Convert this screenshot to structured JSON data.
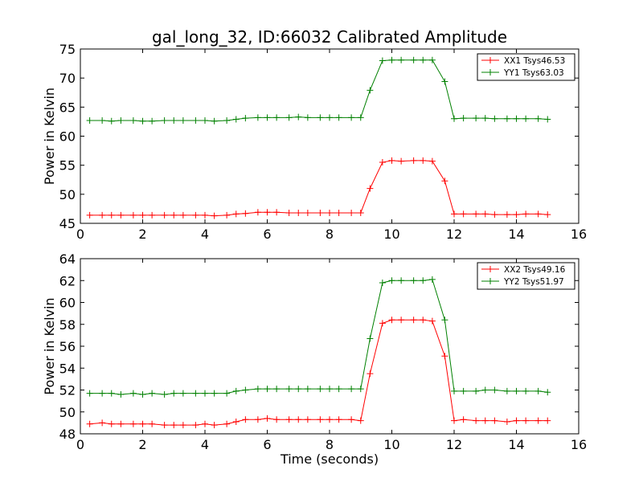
{
  "chart_data": [
    {
      "type": "line",
      "title": "gal_long_32, ID:66032 Calibrated Amplitude",
      "xlabel": "",
      "ylabel": "Power in Kelvin",
      "xlim": [
        0,
        16
      ],
      "ylim": [
        45,
        75
      ],
      "xticks": [
        "0",
        "2",
        "4",
        "6",
        "8",
        "10",
        "12",
        "14",
        "16"
      ],
      "yticks": [
        "45",
        "50",
        "55",
        "60",
        "65",
        "70",
        "75"
      ],
      "legend_position": "top-right",
      "x": [
        0.3,
        0.7,
        1.0,
        1.3,
        1.7,
        2.0,
        2.3,
        2.7,
        3.0,
        3.3,
        3.7,
        4.0,
        4.3,
        4.7,
        5.0,
        5.3,
        5.7,
        6.0,
        6.3,
        6.7,
        7.0,
        7.3,
        7.7,
        8.0,
        8.3,
        8.7,
        9.0,
        9.3,
        9.7,
        10.0,
        10.3,
        10.7,
        11.0,
        11.3,
        11.7,
        12.0,
        12.3,
        12.7,
        13.0,
        13.3,
        13.7,
        14.0,
        14.3,
        14.7,
        15.0
      ],
      "series": [
        {
          "name": "XX1 Tsys46.53",
          "color": "#ff0000",
          "values": [
            46.4,
            46.4,
            46.4,
            46.4,
            46.4,
            46.4,
            46.4,
            46.4,
            46.4,
            46.4,
            46.4,
            46.4,
            46.3,
            46.4,
            46.6,
            46.7,
            46.9,
            46.9,
            46.9,
            46.8,
            46.8,
            46.8,
            46.8,
            46.8,
            46.8,
            46.8,
            46.8,
            51.0,
            55.5,
            55.8,
            55.7,
            55.8,
            55.8,
            55.7,
            52.3,
            46.6,
            46.6,
            46.6,
            46.6,
            46.5,
            46.5,
            46.5,
            46.6,
            46.6,
            46.5
          ]
        },
        {
          "name": "YY1 Tsys63.03",
          "color": "#008000",
          "values": [
            62.7,
            62.7,
            62.6,
            62.7,
            62.7,
            62.6,
            62.6,
            62.7,
            62.7,
            62.7,
            62.7,
            62.7,
            62.6,
            62.7,
            62.9,
            63.1,
            63.2,
            63.2,
            63.2,
            63.2,
            63.3,
            63.2,
            63.2,
            63.2,
            63.2,
            63.2,
            63.2,
            67.9,
            73.0,
            73.1,
            73.1,
            73.1,
            73.1,
            73.1,
            69.4,
            63.0,
            63.1,
            63.1,
            63.1,
            63.0,
            63.0,
            63.0,
            63.0,
            63.0,
            62.9
          ]
        }
      ]
    },
    {
      "type": "line",
      "title": "",
      "xlabel": "Time (seconds)",
      "ylabel": "Power in Kelvin",
      "xlim": [
        0,
        16
      ],
      "ylim": [
        48,
        64
      ],
      "xticks": [
        "0",
        "2",
        "4",
        "6",
        "8",
        "10",
        "12",
        "14",
        "16"
      ],
      "yticks": [
        "48",
        "50",
        "52",
        "54",
        "56",
        "58",
        "60",
        "62",
        "64"
      ],
      "legend_position": "top-right",
      "x": [
        0.3,
        0.7,
        1.0,
        1.3,
        1.7,
        2.0,
        2.3,
        2.7,
        3.0,
        3.3,
        3.7,
        4.0,
        4.3,
        4.7,
        5.0,
        5.3,
        5.7,
        6.0,
        6.3,
        6.7,
        7.0,
        7.3,
        7.7,
        8.0,
        8.3,
        8.7,
        9.0,
        9.3,
        9.7,
        10.0,
        10.3,
        10.7,
        11.0,
        11.3,
        11.7,
        12.0,
        12.3,
        12.7,
        13.0,
        13.3,
        13.7,
        14.0,
        14.3,
        14.7,
        15.0
      ],
      "series": [
        {
          "name": "XX2 Tsys49.16",
          "color": "#ff0000",
          "values": [
            48.9,
            49.0,
            48.9,
            48.9,
            48.9,
            48.9,
            48.9,
            48.8,
            48.8,
            48.8,
            48.8,
            48.9,
            48.8,
            48.9,
            49.1,
            49.3,
            49.3,
            49.4,
            49.3,
            49.3,
            49.3,
            49.3,
            49.3,
            49.3,
            49.3,
            49.3,
            49.2,
            53.5,
            58.1,
            58.4,
            58.4,
            58.4,
            58.4,
            58.3,
            55.1,
            49.2,
            49.3,
            49.2,
            49.2,
            49.2,
            49.1,
            49.2,
            49.2,
            49.2,
            49.2
          ]
        },
        {
          "name": "YY2 Tsys51.97",
          "color": "#008000",
          "values": [
            51.7,
            51.7,
            51.7,
            51.6,
            51.7,
            51.6,
            51.7,
            51.6,
            51.7,
            51.7,
            51.7,
            51.7,
            51.7,
            51.7,
            51.9,
            52.0,
            52.1,
            52.1,
            52.1,
            52.1,
            52.1,
            52.1,
            52.1,
            52.1,
            52.1,
            52.1,
            52.1,
            56.7,
            61.8,
            62.0,
            62.0,
            62.0,
            62.0,
            62.1,
            58.4,
            51.9,
            51.9,
            51.9,
            52.0,
            52.0,
            51.9,
            51.9,
            51.9,
            51.9,
            51.8
          ]
        }
      ]
    }
  ]
}
